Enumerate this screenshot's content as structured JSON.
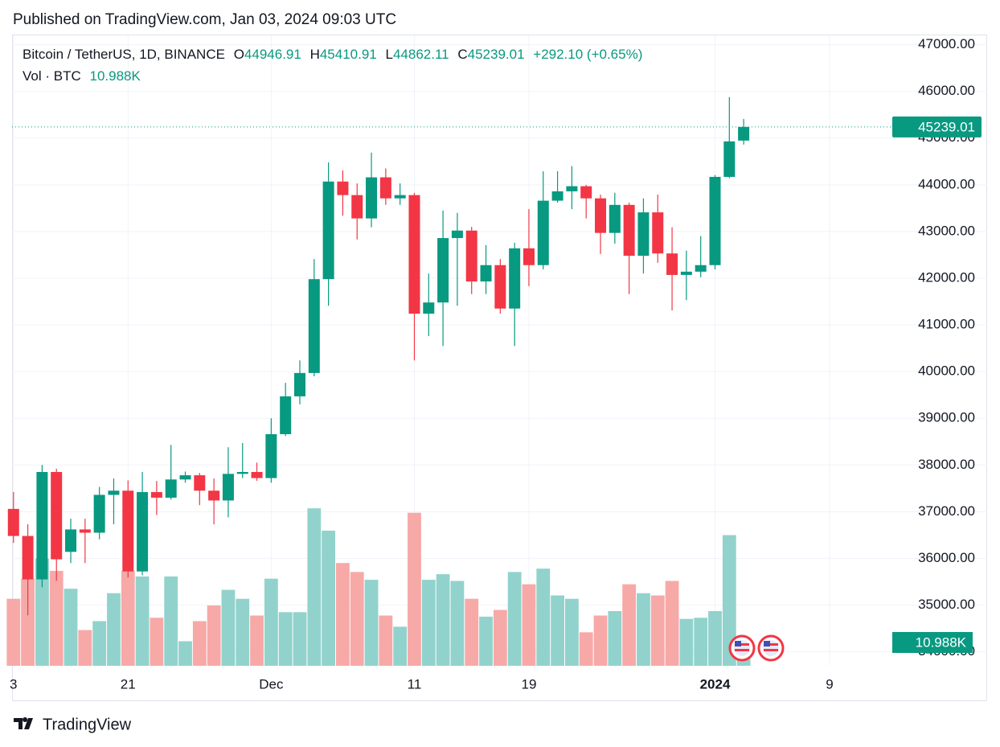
{
  "chart_data": {
    "type": "candlestick",
    "published": "Published on TradingView.com, Jan 03, 2024 09:03 UTC",
    "title": "Bitcoin / TetherUS, 1D, BINANCE",
    "open_label": "O",
    "high_label": "H",
    "low_label": "L",
    "close_label": "C",
    "change_label": "+292.10 (+0.65%)",
    "footer": "TradingView",
    "up_color": "#089981",
    "down_color": "#f23645",
    "volume_up_color": "#92d2cc",
    "volume_down_color": "#f7a9a7",
    "x": [
      0,
      1,
      2,
      3,
      4,
      5,
      6,
      7,
      8,
      9,
      10,
      11,
      12,
      13,
      14,
      15,
      16,
      17,
      18,
      19,
      20,
      21,
      22,
      23,
      24,
      25,
      26,
      27,
      28,
      29,
      30,
      31,
      32,
      33,
      34,
      35,
      36,
      37,
      38,
      39,
      40,
      41,
      42,
      43,
      44,
      45,
      46,
      47,
      48,
      49,
      50,
      51
    ],
    "open": [
      37060,
      36480,
      35550,
      37850,
      36140,
      36620,
      36550,
      37360,
      37450,
      35720,
      37420,
      37300,
      37690,
      37780,
      37450,
      37240,
      37810,
      37850,
      37720,
      38660,
      39470,
      39970,
      41980,
      44070,
      43780,
      43280,
      44160,
      43710,
      43780,
      41240,
      41480,
      42860,
      43020,
      41930,
      42280,
      41350,
      42640,
      42280,
      43660,
      43860,
      43970,
      43710,
      42970,
      43570,
      42480,
      43410,
      42530,
      42070,
      42140,
      42280,
      44170,
      44946.91
    ],
    "high": [
      37420,
      36730,
      38000,
      37920,
      36850,
      36850,
      37530,
      37710,
      37670,
      37850,
      37660,
      38430,
      37860,
      37830,
      37710,
      38380,
      38470,
      38050,
      39000,
      39760,
      40240,
      42410,
      44480,
      44310,
      44030,
      44690,
      44350,
      44030,
      43830,
      42100,
      43450,
      43400,
      43100,
      42710,
      42410,
      42760,
      43480,
      44290,
      44290,
      44400,
      44000,
      43790,
      43830,
      43620,
      43710,
      43790,
      43090,
      42590,
      42900,
      44210,
      45880,
      45410.91
    ],
    "low": [
      36330,
      34780,
      35380,
      35520,
      35900,
      35900,
      36410,
      36730,
      35590,
      35640,
      36930,
      37260,
      37620,
      37140,
      36730,
      36880,
      37720,
      37660,
      37620,
      38620,
      39300,
      39900,
      41410,
      43340,
      42830,
      43090,
      43570,
      43570,
      40240,
      40760,
      40550,
      41410,
      41660,
      41660,
      41240,
      40550,
      41830,
      42190,
      43620,
      43480,
      43280,
      42520,
      42740,
      41660,
      42100,
      42330,
      41310,
      41530,
      42020,
      42190,
      44140,
      44862.11
    ],
    "close": [
      36480,
      35550,
      37850,
      35980,
      36620,
      36550,
      37360,
      37450,
      35720,
      37420,
      37300,
      37690,
      37780,
      37450,
      37240,
      37810,
      37850,
      37720,
      38660,
      39470,
      39970,
      41980,
      44070,
      43780,
      43280,
      44160,
      43710,
      43780,
      41240,
      41480,
      42860,
      43020,
      41930,
      42280,
      41350,
      42640,
      42280,
      43660,
      43860,
      43970,
      43710,
      42970,
      43570,
      42480,
      43410,
      42530,
      42070,
      42140,
      42280,
      44170,
      44930,
      45239.01
    ],
    "volume": {
      "name": "Vol · BTC",
      "values": [
        30000,
        39000,
        48000,
        42500,
        34500,
        16000,
        20000,
        32500,
        42500,
        40000,
        21500,
        40000,
        11000,
        20000,
        27000,
        34000,
        30000,
        22500,
        39000,
        24000,
        24000,
        70500,
        60500,
        46000,
        42000,
        38500,
        22500,
        17500,
        68500,
        38500,
        41000,
        38000,
        30000,
        22000,
        25000,
        42000,
        36500,
        43500,
        31500,
        30000,
        15000,
        22500,
        24500,
        36500,
        32500,
        31500,
        38000,
        21000,
        21500,
        24500,
        58500,
        10988
      ],
      "value_labels": [
        null,
        null,
        null,
        null,
        null,
        null,
        null,
        null,
        null,
        null,
        null,
        null,
        null,
        null,
        null,
        null,
        null,
        null,
        null,
        null,
        null,
        null,
        null,
        null,
        null,
        null,
        null,
        null,
        null,
        null,
        null,
        null,
        null,
        null,
        null,
        null,
        null,
        null,
        null,
        null,
        null,
        null,
        null,
        null,
        null,
        null,
        null,
        null,
        null,
        null,
        null,
        "10.988K"
      ],
      "vlim": [
        0,
        90000
      ]
    },
    "xlim": [
      -0.1,
      61.1
    ],
    "xticks": [
      {
        "value": 0,
        "label": "3"
      },
      {
        "value": 8,
        "label": "21"
      },
      {
        "value": 18,
        "label": "Dec"
      },
      {
        "value": 28,
        "label": "11"
      },
      {
        "value": 36,
        "label": "19"
      },
      {
        "value": 49,
        "label": "2024"
      },
      {
        "value": 57,
        "label": "9"
      }
    ],
    "ylim": [
      33700,
      47200
    ],
    "yticks": [
      {
        "value": 34000,
        "label": "34000.00"
      },
      {
        "value": 35000,
        "label": "35000.00"
      },
      {
        "value": 36000,
        "label": "36000.00"
      },
      {
        "value": 37000,
        "label": "37000.00"
      },
      {
        "value": 38000,
        "label": "38000.00"
      },
      {
        "value": 39000,
        "label": "39000.00"
      },
      {
        "value": 40000,
        "label": "40000.00"
      },
      {
        "value": 41000,
        "label": "41000.00"
      },
      {
        "value": 42000,
        "label": "42000.00"
      },
      {
        "value": 43000,
        "label": "43000.00"
      },
      {
        "value": 44000,
        "label": "44000.00"
      },
      {
        "value": 45000,
        "label": "45000.00"
      },
      {
        "value": 46000,
        "label": "46000.00"
      },
      {
        "value": 47000,
        "label": "47000.00"
      }
    ],
    "grid": true
  }
}
